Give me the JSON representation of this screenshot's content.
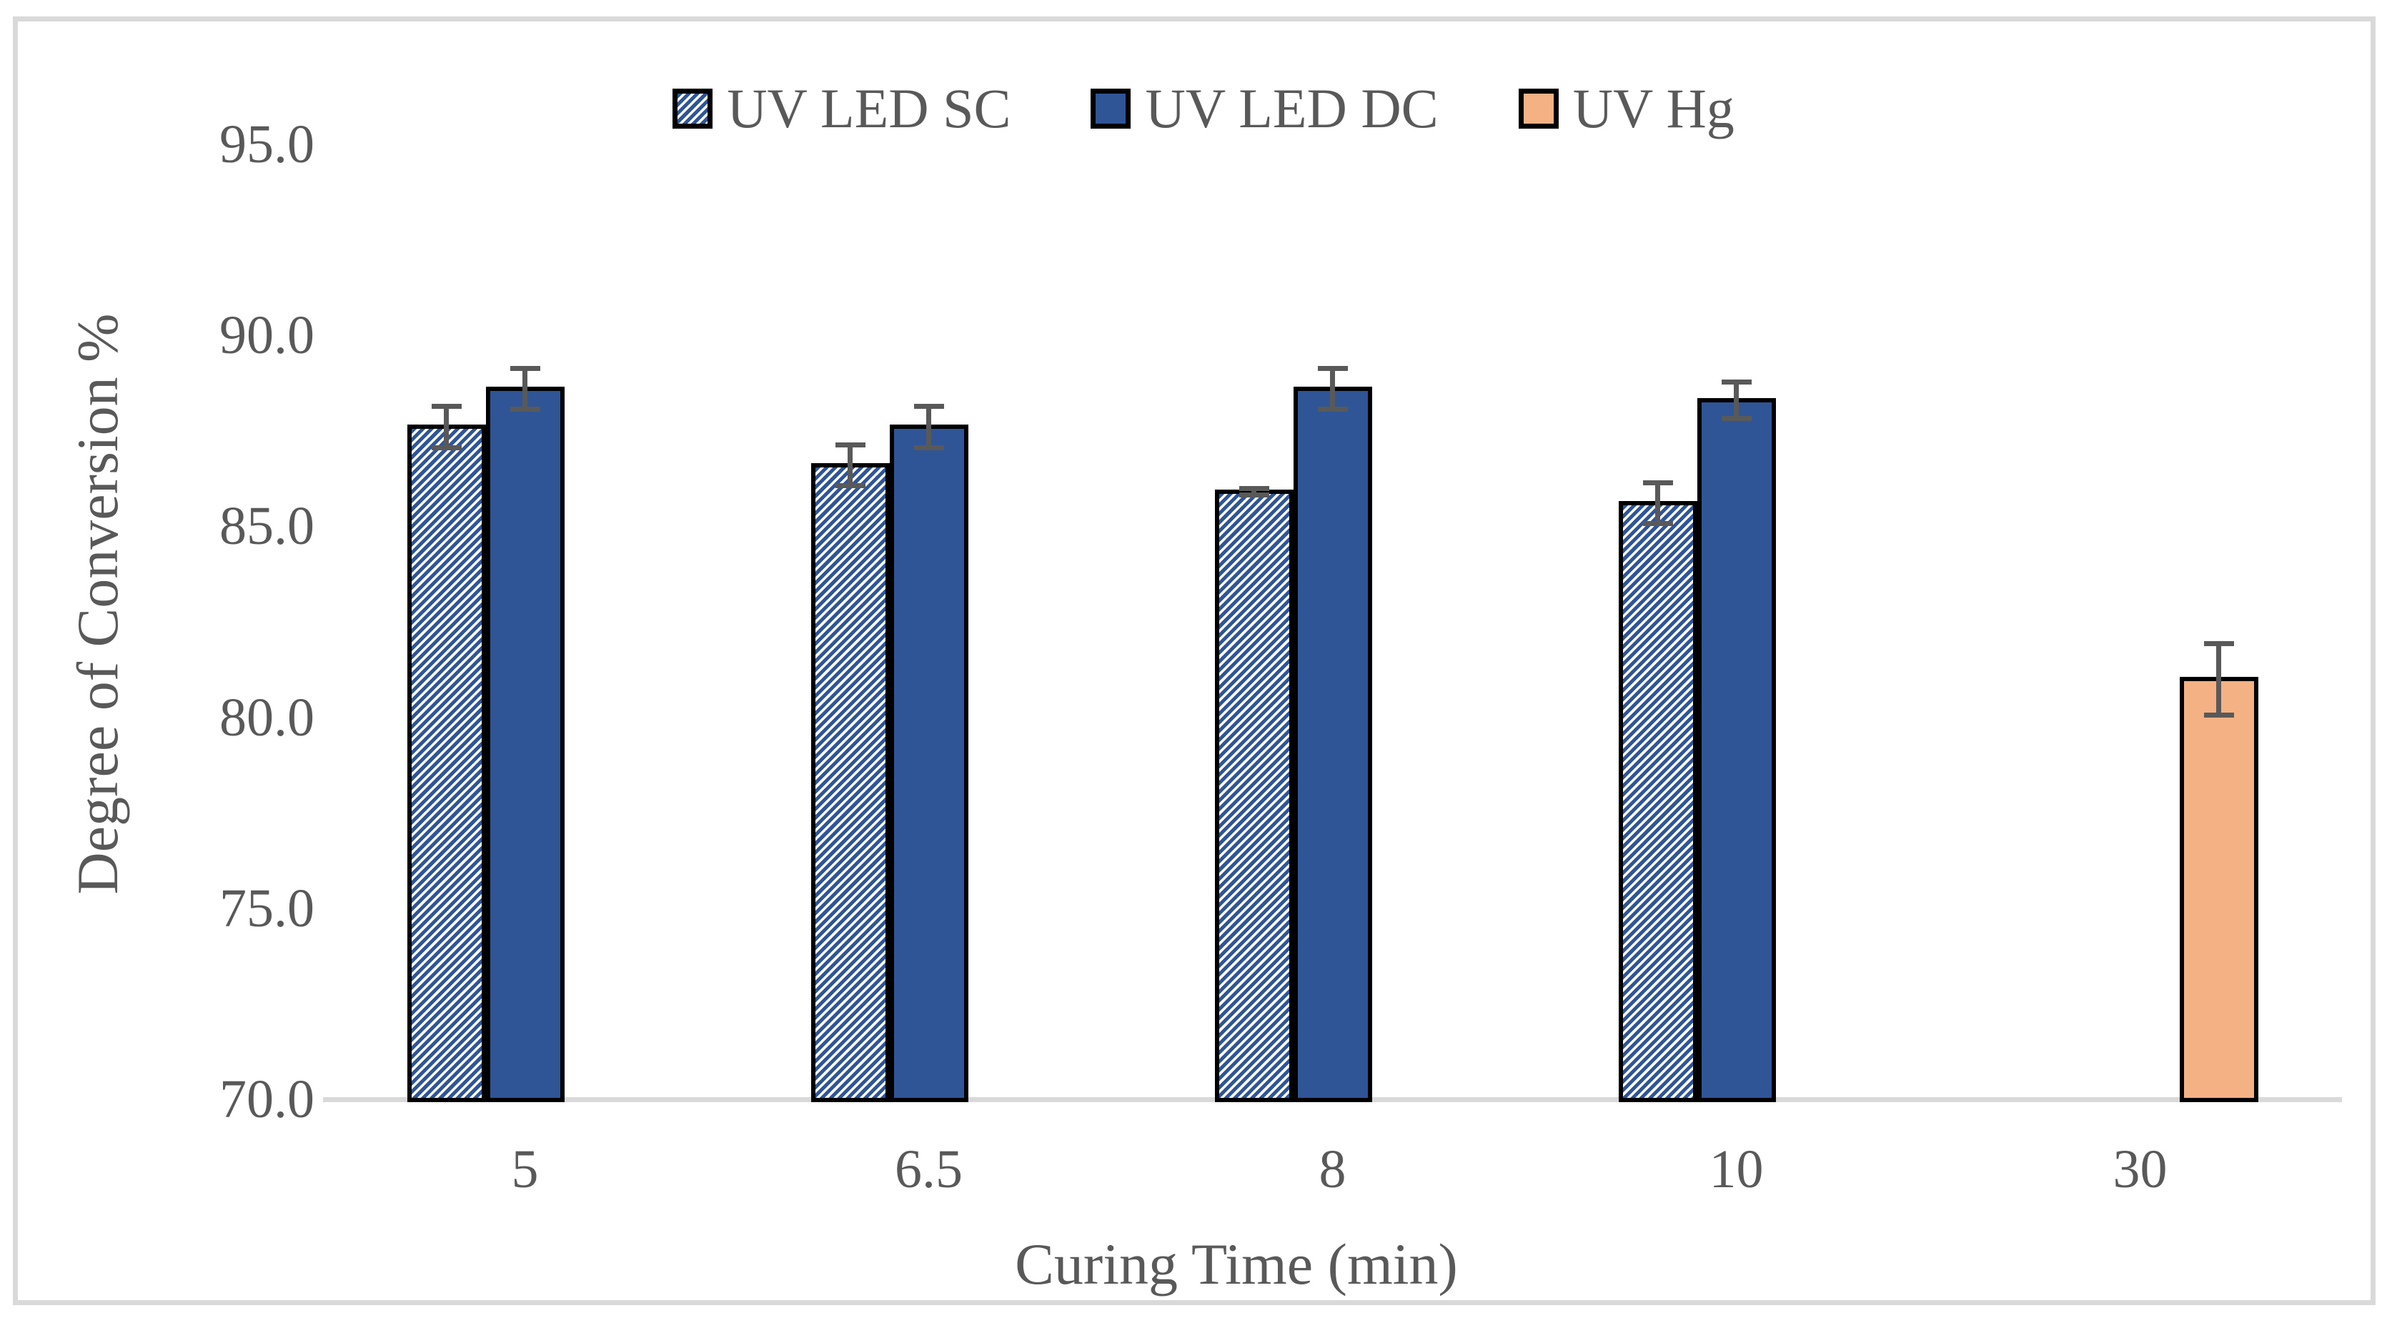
{
  "figure": {
    "background_color": "#FFFFFF",
    "frame_border_color": "#D9D9D9"
  },
  "chart_data": {
    "type": "bar",
    "title": "",
    "categories": [
      "5",
      "6.5",
      "8",
      "10",
      "30"
    ],
    "series": [
      {
        "name": "UV LED SC",
        "pattern": "diagonal-hatch",
        "color": "#2F5597",
        "values": [
          87.6,
          86.6,
          85.9,
          85.6,
          null
        ],
        "errors": [
          0.6,
          0.6,
          0.15,
          0.6,
          null
        ]
      },
      {
        "name": "UV LED DC",
        "pattern": "solid",
        "color": "#2F5597",
        "values": [
          88.6,
          87.6,
          88.6,
          88.3,
          null
        ],
        "errors": [
          0.6,
          0.6,
          0.6,
          0.55,
          null
        ]
      },
      {
        "name": "UV Hg",
        "pattern": "solid",
        "color": "#F4B183",
        "values": [
          null,
          null,
          null,
          null,
          81.0
        ],
        "errors": [
          null,
          null,
          null,
          null,
          1.0
        ]
      }
    ],
    "xlabel": "Curing Time (min)",
    "ylabel": "Degree of Conversion %",
    "ylim": [
      70,
      95
    ],
    "ytick_values": [
      95,
      90,
      85,
      80,
      75,
      70
    ],
    "ytick_labels": [
      "95.0",
      "90.0",
      "85.0",
      "80.0",
      "75.0",
      "70.0"
    ],
    "grid": false,
    "legend_position": "top-center",
    "error_bar_color": "#595959",
    "text_color": "#595959",
    "axis_line_color": "#D9D9D9",
    "bar_border_color": "#000000"
  }
}
